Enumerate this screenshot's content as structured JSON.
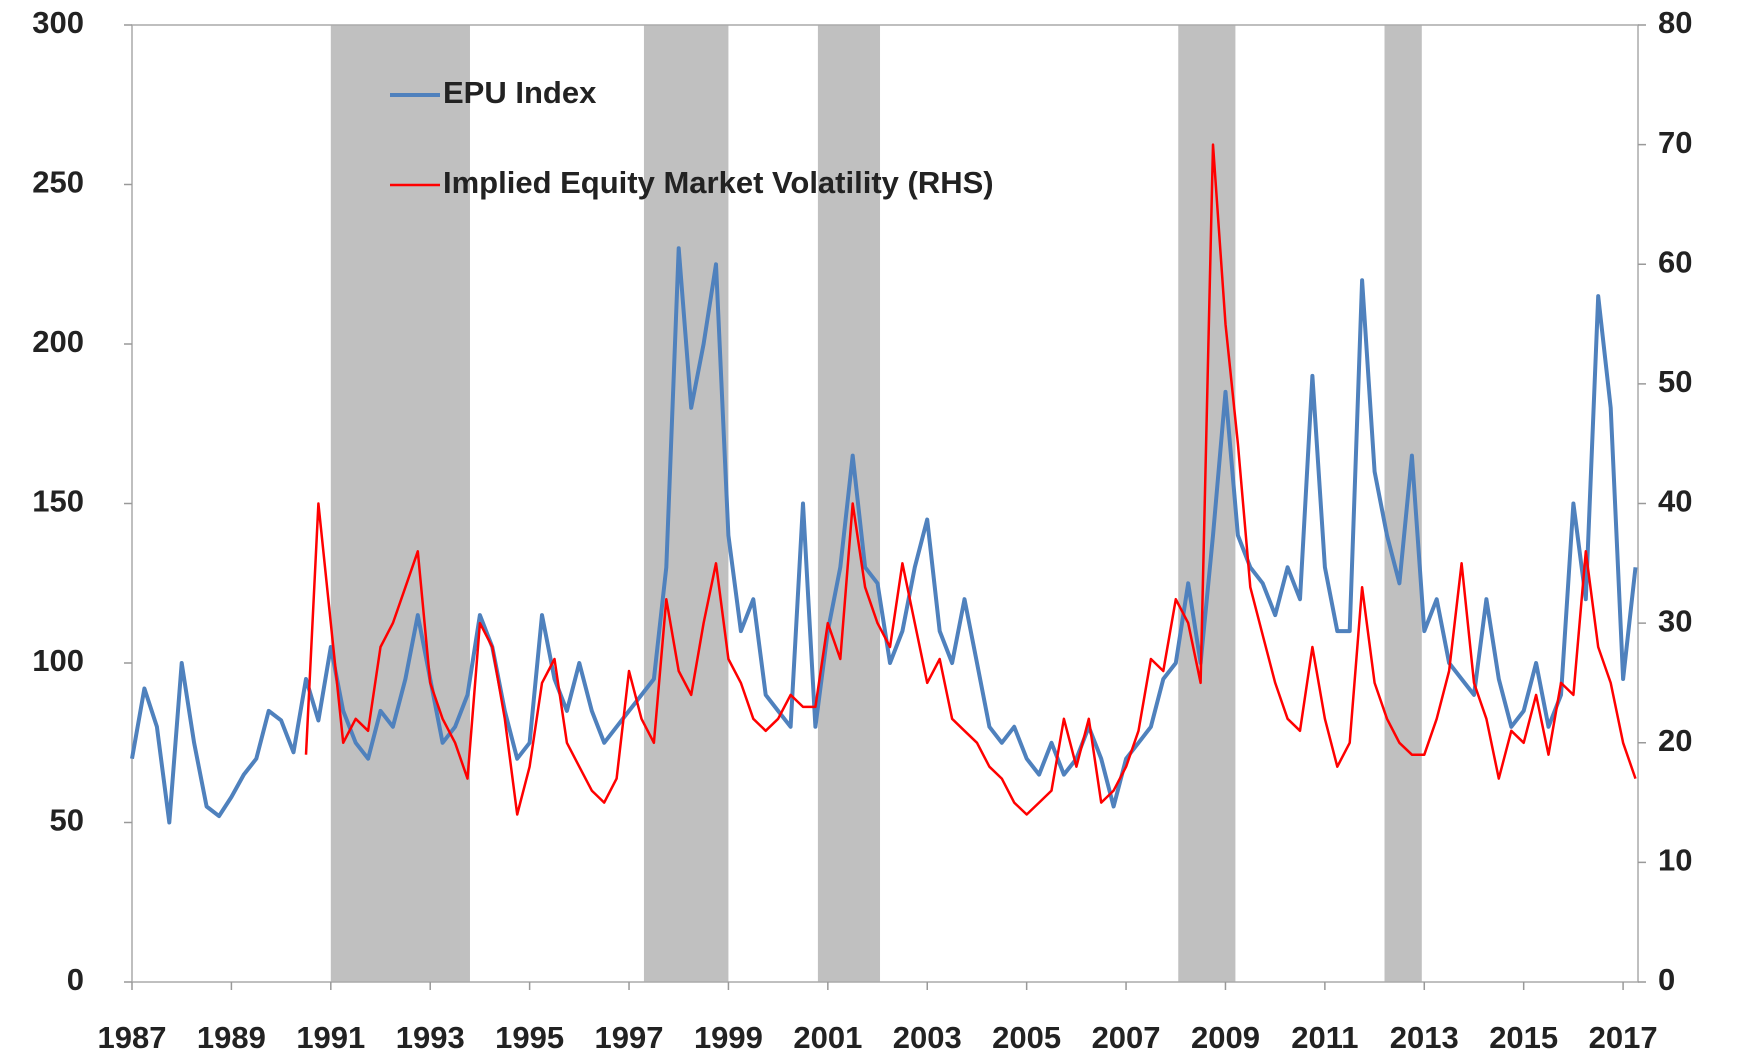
{
  "chart_data": {
    "type": "line",
    "x": [
      1987,
      1987.25,
      1987.5,
      1987.75,
      1988,
      1988.25,
      1988.5,
      1988.75,
      1989,
      1989.25,
      1989.5,
      1989.75,
      1990,
      1990.25,
      1990.5,
      1990.75,
      1991,
      1991.25,
      1991.5,
      1991.75,
      1992,
      1992.25,
      1992.5,
      1992.75,
      1993,
      1993.25,
      1993.5,
      1993.75,
      1994,
      1994.25,
      1994.5,
      1994.75,
      1995,
      1995.25,
      1995.5,
      1995.75,
      1996,
      1996.25,
      1996.5,
      1996.75,
      1997,
      1997.25,
      1997.5,
      1997.75,
      1998,
      1998.25,
      1998.5,
      1998.75,
      1999,
      1999.25,
      1999.5,
      1999.75,
      2000,
      2000.25,
      2000.5,
      2000.75,
      2001,
      2001.25,
      2001.5,
      2001.75,
      2002,
      2002.25,
      2002.5,
      2002.75,
      2003,
      2003.25,
      2003.5,
      2003.75,
      2004,
      2004.25,
      2004.5,
      2004.75,
      2005,
      2005.25,
      2005.5,
      2005.75,
      2006,
      2006.25,
      2006.5,
      2006.75,
      2007,
      2007.25,
      2007.5,
      2007.75,
      2008,
      2008.25,
      2008.5,
      2008.75,
      2009,
      2009.25,
      2009.5,
      2009.75,
      2010,
      2010.25,
      2010.5,
      2010.75,
      2011,
      2011.25,
      2011.5,
      2011.75,
      2012,
      2012.25,
      2012.5,
      2012.75,
      2013,
      2013.25,
      2013.5,
      2013.75,
      2014,
      2014.25,
      2014.5,
      2014.75,
      2015,
      2015.25,
      2015.5,
      2015.75,
      2016,
      2016.25,
      2016.5,
      2016.75,
      2017,
      2017.25
    ],
    "series": [
      {
        "name": "EPU Index",
        "color": "#4f81bd",
        "values": [
          70,
          92,
          80,
          50,
          100,
          75,
          55,
          52,
          58,
          65,
          70,
          85,
          82,
          72,
          95,
          82,
          105,
          85,
          75,
          70,
          85,
          80,
          95,
          115,
          95,
          75,
          80,
          90,
          115,
          105,
          85,
          70,
          75,
          115,
          95,
          85,
          100,
          85,
          75,
          80,
          85,
          90,
          95,
          130,
          230,
          180,
          200,
          225,
          140,
          110,
          120,
          90,
          85,
          80,
          150,
          80,
          110,
          130,
          165,
          130,
          125,
          100,
          110,
          130,
          145,
          110,
          100,
          120,
          100,
          80,
          75,
          80,
          70,
          65,
          75,
          65,
          70,
          80,
          70,
          55,
          70,
          75,
          80,
          95,
          100,
          125,
          100,
          140,
          185,
          140,
          130,
          125,
          115,
          130,
          120,
          190,
          130,
          110,
          110,
          220,
          160,
          140,
          125,
          165,
          110,
          120,
          100,
          95,
          90,
          120,
          95,
          80,
          85,
          100,
          80,
          90,
          150,
          120,
          215,
          180,
          95,
          130
        ]
      },
      {
        "name": "Implied Equity Market Volatility (RHS)",
        "color": "#ff0000",
        "axis": "y2",
        "values": [
          null,
          null,
          null,
          null,
          null,
          null,
          null,
          null,
          null,
          null,
          null,
          null,
          null,
          null,
          19,
          40,
          30,
          20,
          22,
          21,
          28,
          30,
          33,
          36,
          25,
          22,
          20,
          17,
          30,
          28,
          22,
          14,
          18,
          25,
          27,
          20,
          18,
          16,
          15,
          17,
          26,
          22,
          20,
          32,
          26,
          24,
          30,
          35,
          27,
          25,
          22,
          21,
          22,
          24,
          23,
          23,
          30,
          27,
          40,
          33,
          30,
          28,
          35,
          30,
          25,
          27,
          22,
          21,
          20,
          18,
          17,
          15,
          14,
          15,
          16,
          22,
          18,
          22,
          15,
          16,
          18,
          21,
          27,
          26,
          32,
          30,
          25,
          70,
          55,
          45,
          33,
          29,
          25,
          22,
          21,
          28,
          22,
          18,
          20,
          33,
          25,
          22,
          20,
          19,
          19,
          22,
          26,
          35,
          25,
          22,
          17,
          21,
          20,
          24,
          19,
          25,
          24,
          36,
          28,
          25,
          20,
          17
        ]
      }
    ],
    "shaded": [
      [
        1991,
        1993.8
      ],
      [
        1997.3,
        1999
      ],
      [
        2000.8,
        2002.05
      ],
      [
        2008.05,
        2009.2
      ],
      [
        2012.2,
        2012.95
      ]
    ],
    "xlim": [
      1987,
      2017.3
    ],
    "xticks": [
      1987,
      1989,
      1991,
      1993,
      1995,
      1997,
      1999,
      2001,
      2003,
      2005,
      2007,
      2009,
      2011,
      2013,
      2015,
      2017
    ],
    "ylim": [
      0,
      300
    ],
    "yticks": [
      0,
      50,
      100,
      150,
      200,
      250,
      300
    ],
    "y2lim": [
      0,
      80
    ],
    "y2ticks": [
      0,
      10,
      20,
      30,
      40,
      50,
      60,
      70,
      80
    ],
    "shade_color": "#c0c0c0"
  }
}
